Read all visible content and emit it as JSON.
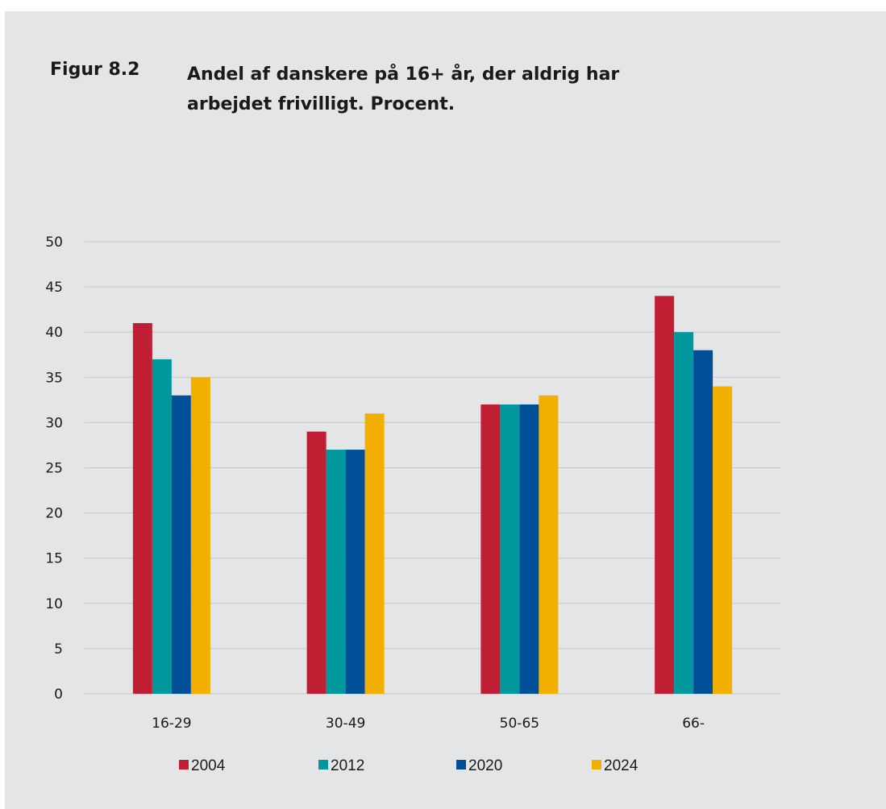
{
  "figure": {
    "label": "Figur 8.2",
    "title": "Andel af danskere på 16+ år, der aldrig har arbejdet frivilligt. Procent."
  },
  "chart_data": {
    "type": "bar",
    "title": "Andel af danskere på 16+ år, der aldrig har arbejdet frivilligt. Procent.",
    "xlabel": "",
    "ylabel": "",
    "categories": [
      "16-29",
      "30-49",
      "50-65",
      "66-"
    ],
    "series": [
      {
        "name": "2004",
        "color": "#c01f33",
        "values": [
          41,
          29,
          32,
          44
        ]
      },
      {
        "name": "2012",
        "color": "#00979d",
        "values": [
          37,
          27,
          32,
          40
        ]
      },
      {
        "name": "2020",
        "color": "#004f99",
        "values": [
          33,
          27,
          32,
          38
        ]
      },
      {
        "name": "2024",
        "color": "#f2af00",
        "values": [
          35,
          31,
          33,
          34
        ]
      }
    ],
    "ylim": [
      0,
      50
    ],
    "yticks": [
      0,
      5,
      10,
      15,
      20,
      25,
      30,
      35,
      40,
      45,
      50
    ],
    "grid": true,
    "legend_position": "bottom"
  }
}
